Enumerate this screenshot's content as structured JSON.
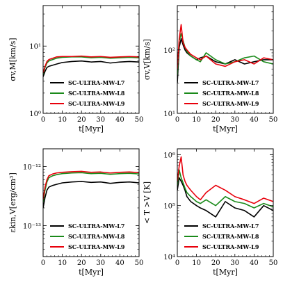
{
  "chart_data": [
    {
      "type": "line",
      "id": "vmass",
      "yscale": "log",
      "xlim": [
        0,
        50
      ],
      "ylim": [
        1,
        40
      ],
      "xticks": [
        "0",
        "10",
        "20",
        "30",
        "40",
        "50"
      ],
      "yticks": [
        {
          "v": 1,
          "label": "10⁰"
        },
        {
          "v": 10,
          "label": "10¹"
        }
      ],
      "xlabel": "t[Myr]",
      "ylabel": "σv,M[km/s]",
      "legend_loc": "lower-right",
      "series": [
        {
          "name": "SC-ULTRA-MW-L7",
          "color": "#000000",
          "x": [
            0,
            1,
            2,
            3,
            5,
            7,
            10,
            15,
            20,
            25,
            30,
            35,
            40,
            45,
            50
          ],
          "y": [
            3.5,
            4.2,
            4.8,
            5.0,
            5.2,
            5.4,
            5.7,
            5.9,
            6.0,
            5.8,
            5.9,
            5.6,
            5.8,
            5.9,
            5.8
          ]
        },
        {
          "name": "SC-ULTRA-MW-L8",
          "color": "#1a8a1a",
          "x": [
            0,
            1,
            2,
            3,
            5,
            7,
            10,
            15,
            20,
            25,
            30,
            35,
            40,
            45,
            50
          ],
          "y": [
            3.8,
            4.8,
            5.6,
            6.0,
            6.3,
            6.6,
            6.8,
            6.9,
            6.9,
            6.7,
            6.8,
            6.6,
            6.7,
            6.8,
            6.7
          ]
        },
        {
          "name": "SC-ULTRA-MW-L9",
          "color": "#e8000b",
          "x": [
            0,
            1,
            2,
            3,
            5,
            7,
            10,
            15,
            20,
            25,
            30,
            35,
            40,
            45,
            50
          ],
          "y": [
            4.0,
            5.0,
            5.9,
            6.3,
            6.6,
            6.9,
            7.0,
            7.0,
            7.1,
            6.9,
            7.0,
            6.8,
            6.9,
            7.0,
            6.9
          ]
        }
      ]
    },
    {
      "type": "line",
      "id": "vvol",
      "yscale": "log",
      "xlim": [
        0,
        50
      ],
      "ylim": [
        10,
        500
      ],
      "xticks": [
        "0",
        "10",
        "20",
        "30",
        "40",
        "50"
      ],
      "yticks": [
        {
          "v": 10,
          "label": "10¹"
        },
        {
          "v": 100,
          "label": "10²"
        }
      ],
      "xlabel": "t[Myr]",
      "ylabel": "σv,V[km/s]",
      "legend_loc": "lower-right",
      "series": [
        {
          "name": "SC-ULTRA-MW-L7",
          "color": "#000000",
          "x": [
            0,
            1,
            2,
            3,
            4,
            5,
            7,
            10,
            12,
            15,
            20,
            25,
            30,
            35,
            40,
            45,
            50
          ],
          "y": [
            30,
            110,
            150,
            120,
            100,
            90,
            80,
            70,
            75,
            80,
            65,
            60,
            70,
            60,
            65,
            70,
            70
          ]
        },
        {
          "name": "SC-ULTRA-MW-L8",
          "color": "#1a8a1a",
          "x": [
            0,
            1,
            2,
            3,
            4,
            5,
            7,
            10,
            12,
            15,
            20,
            25,
            30,
            35,
            40,
            45,
            50
          ],
          "y": [
            40,
            140,
            180,
            140,
            110,
            95,
            80,
            70,
            65,
            90,
            70,
            60,
            65,
            75,
            80,
            65,
            60
          ]
        },
        {
          "name": "SC-ULTRA-MW-L9",
          "color": "#e8000b",
          "x": [
            0,
            1,
            2,
            3,
            4,
            5,
            7,
            10,
            12,
            15,
            20,
            25,
            30,
            35,
            40,
            45,
            50
          ],
          "y": [
            50,
            150,
            250,
            130,
            110,
            100,
            85,
            75,
            70,
            80,
            60,
            55,
            65,
            70,
            60,
            75,
            70
          ]
        }
      ]
    },
    {
      "type": "line",
      "id": "ekin",
      "yscale": "log",
      "xlim": [
        0,
        50
      ],
      "ylim": [
        3e-14,
        2e-12
      ],
      "xticks": [
        "0",
        "10",
        "20",
        "30",
        "40",
        "50"
      ],
      "yticks": [
        {
          "v": 1e-13,
          "label": "10⁻¹³"
        },
        {
          "v": 1e-12,
          "label": "10⁻¹²"
        }
      ],
      "xlabel": "t[Myr]",
      "ylabel": "εkin,V[erg/cm³]",
      "legend_loc": "lower-right",
      "series": [
        {
          "name": "SC-ULTRA-MW-L7",
          "color": "#000000",
          "x": [
            0,
            1,
            2,
            3,
            5,
            7,
            10,
            15,
            20,
            25,
            30,
            35,
            40,
            45,
            50
          ],
          "y": [
            2e-13,
            3e-13,
            4e-13,
            4.5e-13,
            4.8e-13,
            5e-13,
            5.3e-13,
            5.5e-13,
            5.6e-13,
            5.4e-13,
            5.5e-13,
            5.2e-13,
            5.4e-13,
            5.5e-13,
            5.3e-13
          ]
        },
        {
          "name": "SC-ULTRA-MW-L8",
          "color": "#1a8a1a",
          "x": [
            0,
            1,
            2,
            3,
            5,
            7,
            10,
            15,
            20,
            25,
            30,
            35,
            40,
            45,
            50
          ],
          "y": [
            2.5e-13,
            4e-13,
            5.5e-13,
            6.5e-13,
            7e-13,
            7.3e-13,
            7.6e-13,
            7.8e-13,
            7.9e-13,
            7.6e-13,
            7.7e-13,
            7.4e-13,
            7.6e-13,
            7.7e-13,
            7.5e-13
          ]
        },
        {
          "name": "SC-ULTRA-MW-L9",
          "color": "#e8000b",
          "x": [
            0,
            1,
            2,
            3,
            5,
            7,
            10,
            15,
            20,
            25,
            30,
            35,
            40,
            45,
            50
          ],
          "y": [
            2.8e-13,
            4.5e-13,
            6e-13,
            7e-13,
            7.5e-13,
            7.8e-13,
            8e-13,
            8.2e-13,
            8.3e-13,
            8e-13,
            8.1e-13,
            7.8e-13,
            8e-13,
            8.1e-13,
            7.9e-13
          ]
        }
      ]
    },
    {
      "type": "line",
      "id": "temp",
      "yscale": "log",
      "xlim": [
        0,
        50
      ],
      "ylim": [
        10000,
        1300000
      ],
      "xticks": [
        "0",
        "10",
        "20",
        "30",
        "40",
        "50"
      ],
      "yticks": [
        {
          "v": 10000,
          "label": "10⁴"
        },
        {
          "v": 100000,
          "label": "10⁵"
        },
        {
          "v": 1000000,
          "label": "10⁶"
        }
      ],
      "xlabel": "t[Myr]",
      "ylabel": "< T >V [K]",
      "legend_loc": "lower-right",
      "series": [
        {
          "name": "SC-ULTRA-MW-L7",
          "color": "#000000",
          "x": [
            0,
            1,
            2,
            3,
            4,
            5,
            7,
            10,
            12,
            15,
            20,
            25,
            30,
            35,
            40,
            45,
            50
          ],
          "y": [
            200000,
            350000,
            300000,
            250000,
            200000,
            150000,
            120000,
            100000,
            90000,
            80000,
            60000,
            120000,
            90000,
            80000,
            60000,
            100000,
            80000
          ]
        },
        {
          "name": "SC-ULTRA-MW-L8",
          "color": "#1a8a1a",
          "x": [
            0,
            1,
            2,
            3,
            4,
            5,
            7,
            10,
            12,
            15,
            20,
            25,
            30,
            35,
            40,
            45,
            50
          ],
          "y": [
            250000,
            500000,
            350000,
            280000,
            220000,
            180000,
            150000,
            120000,
            110000,
            130000,
            100000,
            150000,
            120000,
            110000,
            90000,
            110000,
            95000
          ]
        },
        {
          "name": "SC-ULTRA-MW-L9",
          "color": "#e8000b",
          "x": [
            0,
            1,
            2,
            3,
            4,
            5,
            7,
            10,
            12,
            15,
            20,
            25,
            30,
            35,
            40,
            45,
            50
          ],
          "y": [
            300000,
            600000,
            900000,
            400000,
            300000,
            250000,
            200000,
            150000,
            130000,
            180000,
            250000,
            200000,
            150000,
            130000,
            110000,
            140000,
            120000
          ]
        }
      ]
    }
  ]
}
